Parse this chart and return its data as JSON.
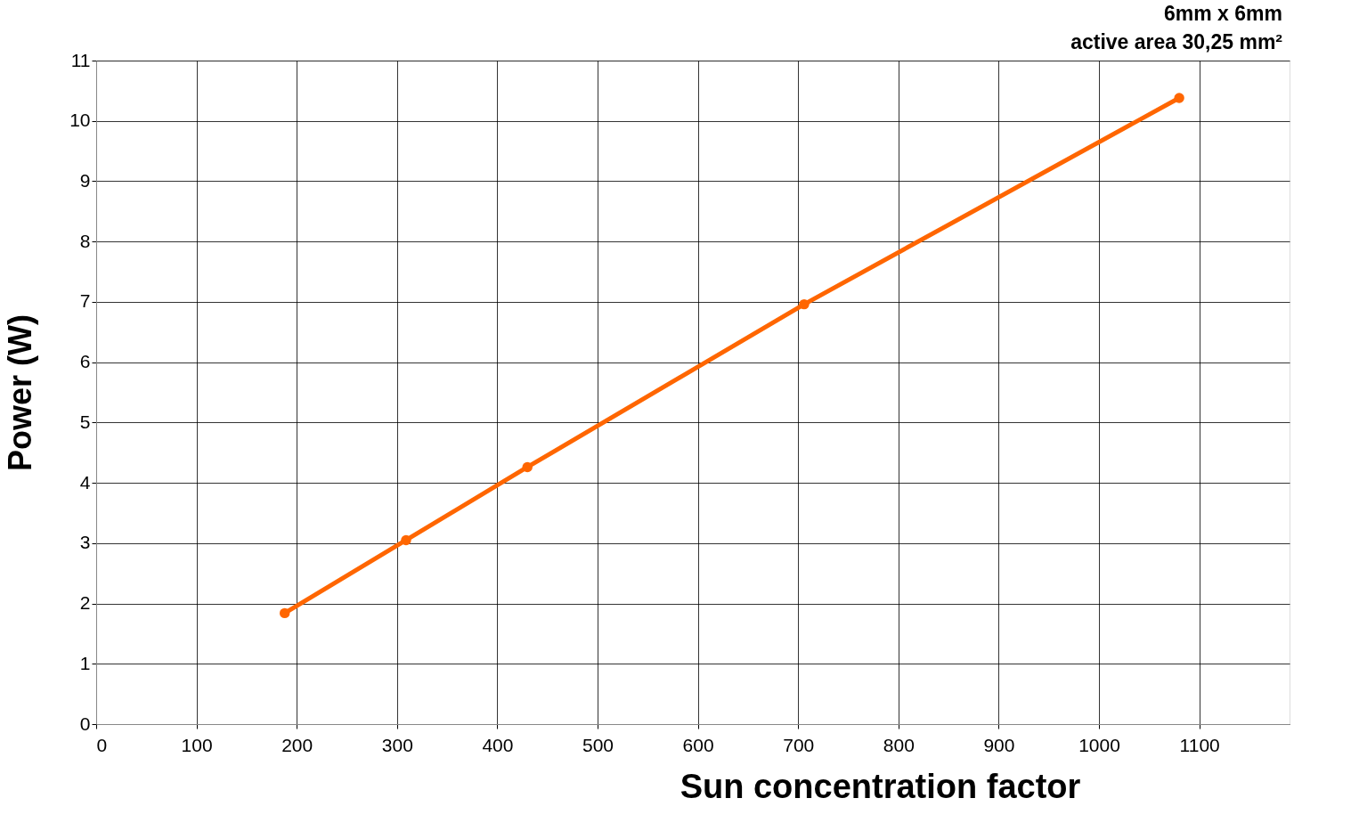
{
  "chart_data": {
    "type": "line",
    "xlabel": "Sun concentration factor",
    "ylabel": "Power (W)",
    "annotations": [
      "6mm x 6mm",
      "active area 30,25 mm²"
    ],
    "x": [
      188,
      309,
      430,
      706,
      1080
    ],
    "series": [
      {
        "color": "#ff6600",
        "values": [
          1.84,
          3.05,
          4.26,
          6.96,
          10.38
        ]
      }
    ],
    "xlim": [
      0,
      1190
    ],
    "xticks": [
      0,
      100,
      200,
      300,
      400,
      500,
      600,
      700,
      800,
      900,
      1000,
      1100
    ],
    "ylim": [
      0,
      11
    ],
    "yticks": [
      0,
      1,
      2,
      3,
      4,
      5,
      6,
      7,
      8,
      9,
      10,
      11
    ],
    "grid": true,
    "marker": "circle",
    "line_style": "solid"
  }
}
